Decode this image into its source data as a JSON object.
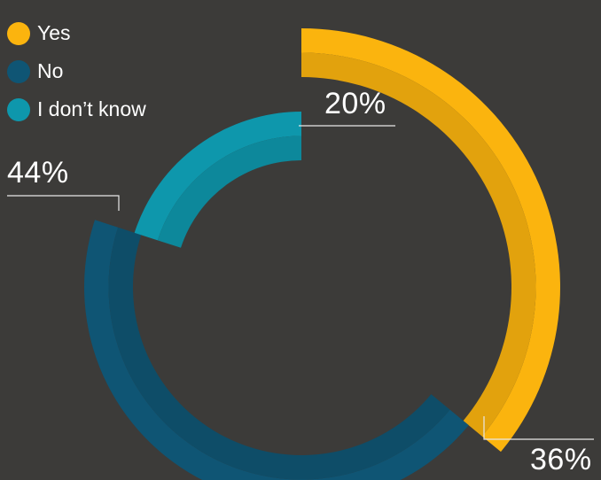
{
  "chart_data": {
    "type": "donut",
    "categories": [
      "Yes",
      "No",
      "I don’t know"
    ],
    "values": [
      36,
      44,
      20
    ],
    "value_labels": [
      "36%",
      "44%",
      "20%"
    ],
    "colors": {
      "Yes": "#fbb40e",
      "No": "#0f5574",
      "I don’t know": "#0e97ac"
    },
    "legend_position": "top-left",
    "title": ""
  }
}
